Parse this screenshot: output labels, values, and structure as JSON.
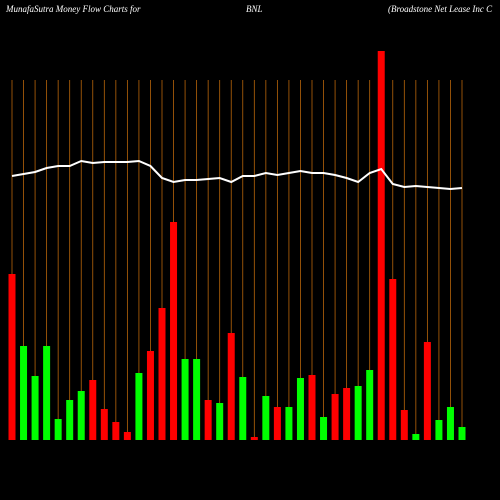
{
  "chart_data": {
    "type": "bar",
    "title": "MunafaSutra  Money Flow  Charts for",
    "subtitle": "BNL",
    "annotation": "(Broadstone   Net Lease   Inc C",
    "ylim": [
      0,
      390
    ],
    "grid_color": "#b8650a",
    "bar_values": [
      166,
      94,
      64,
      94,
      21,
      40,
      49,
      60,
      31,
      18,
      8,
      67,
      89,
      132,
      218,
      81,
      81,
      40,
      37,
      107,
      63,
      3,
      44,
      33,
      33,
      62,
      65,
      23,
      46,
      52,
      54,
      70,
      389,
      161,
      30,
      6,
      98,
      20,
      33,
      13
    ],
    "bar_colors": [
      "#ff0000",
      "#00ff00",
      "#00ff00",
      "#00ff00",
      "#00ff00",
      "#00ff00",
      "#00ff00",
      "#ff0000",
      "#ff0000",
      "#ff0000",
      "#ff0000",
      "#00ff00",
      "#ff0000",
      "#ff0000",
      "#ff0000",
      "#00ff00",
      "#00ff00",
      "#ff0000",
      "#00ff00",
      "#ff0000",
      "#00ff00",
      "#ff0000",
      "#00ff00",
      "#ff0000",
      "#00ff00",
      "#00ff00",
      "#ff0000",
      "#00ff00",
      "#ff0000",
      "#ff0000",
      "#00ff00",
      "#00ff00",
      "#ff0000",
      "#ff0000",
      "#ff0000",
      "#00ff00",
      "#ff0000",
      "#00ff00",
      "#00ff00",
      "#00ff00"
    ],
    "line_values": [
      264,
      266,
      268,
      272,
      274,
      274,
      279,
      277,
      278,
      278,
      278,
      279,
      274,
      262,
      258,
      260,
      260,
      261,
      262,
      258,
      264,
      264,
      267,
      265,
      267,
      269,
      267,
      267,
      265,
      262,
      258,
      267,
      271,
      256,
      253,
      254,
      253,
      252,
      251,
      252
    ],
    "line_color": "#ffffff"
  }
}
